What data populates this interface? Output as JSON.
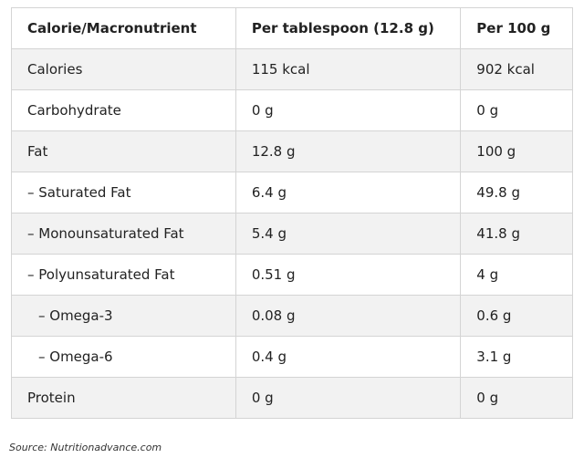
{
  "table": {
    "header": [
      "Calorie/Macronutrient",
      "Per tablespoon (12.8 g)",
      "Per 100 g"
    ],
    "rows": [
      [
        "Calories",
        "115 kcal",
        "902 kcal"
      ],
      [
        "Carbohydrate",
        "0 g",
        "0 g"
      ],
      [
        "Fat",
        "12.8 g",
        "100 g"
      ],
      [
        "– Saturated Fat",
        "6.4 g",
        "49.8 g"
      ],
      [
        "– Monounsaturated Fat",
        "5.4 g",
        "41.8 g"
      ],
      [
        "– Polyunsaturated Fat",
        "0.51 g",
        "4 g"
      ],
      [
        "– Omega-3",
        "0.08 g",
        "0.6 g"
      ],
      [
        "– Omega-6",
        "0.4 g",
        "3.1 g"
      ],
      [
        "Protein",
        "0 g",
        "0 g"
      ]
    ]
  },
  "source": "Source: Nutritionadvance.com"
}
